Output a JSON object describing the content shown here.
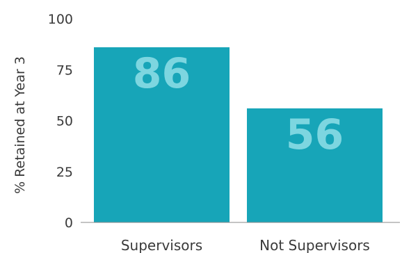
{
  "chart_data": {
    "type": "bar",
    "categories": [
      "Supervisors",
      "Not Supervisors"
    ],
    "values": [
      86,
      56
    ],
    "data_labels": [
      "86",
      "56"
    ],
    "title": "",
    "xlabel": "",
    "ylabel": "% Retained at Year 3",
    "ylim": [
      0,
      100
    ],
    "yticks": [
      0,
      25,
      50,
      75,
      100
    ],
    "ytick_labels": [
      "0",
      "25",
      "50",
      "75",
      "100"
    ],
    "grid": false,
    "legend": "none",
    "colors": {
      "bar": "#17a5b8",
      "data_label": "#7dd6e0",
      "axis": "#8a8a8a",
      "text": "#3a3a3a"
    }
  }
}
